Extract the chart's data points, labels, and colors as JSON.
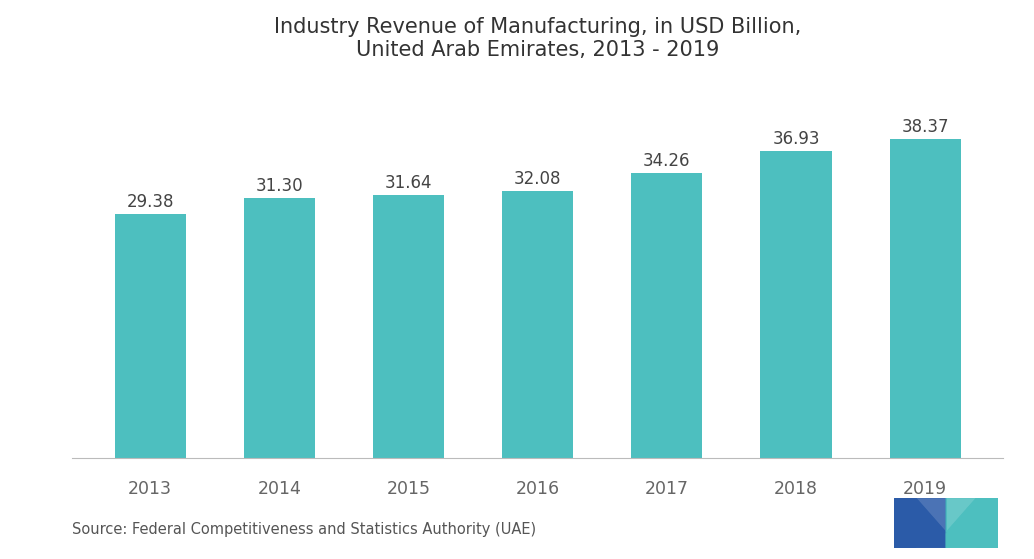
{
  "title": "Industry Revenue of Manufacturing, in USD Billion,\nUnited Arab Emirates, 2013 - 2019",
  "categories": [
    "2013",
    "2014",
    "2015",
    "2016",
    "2017",
    "2018",
    "2019"
  ],
  "values": [
    29.38,
    31.3,
    31.64,
    32.08,
    34.26,
    36.93,
    38.37
  ],
  "bar_color": "#4DBFBF",
  "background_color": "#ffffff",
  "title_fontsize": 15,
  "label_fontsize": 12,
  "tick_fontsize": 12.5,
  "source_text": "Source: Federal Competitiveness and Statistics Authority (UAE)",
  "source_fontsize": 10.5,
  "ylim": [
    0,
    45
  ],
  "bar_width": 0.55,
  "tick_color": "#666666",
  "label_color": "#444444"
}
